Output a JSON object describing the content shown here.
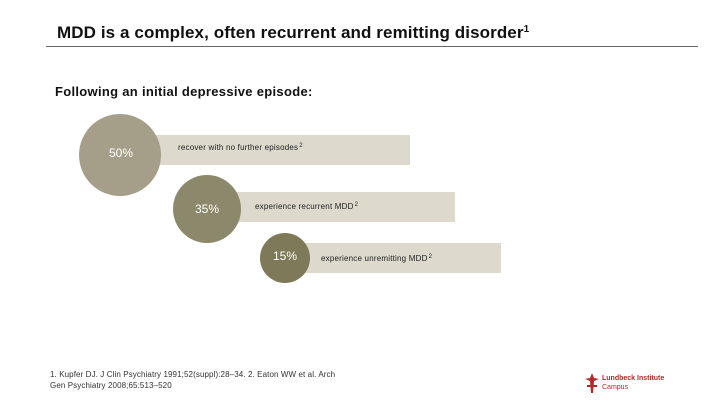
{
  "slide": {
    "title": "MDD is a complex, often recurrent and remitting disorder",
    "title_ref": "1",
    "subtitle": "Following an initial depressive episode:",
    "outcomes": [
      {
        "percent": "50%",
        "label": "recover with no further episodes",
        "ref": "2"
      },
      {
        "percent": "35%",
        "label": "experience recurrent MDD",
        "ref": "2"
      },
      {
        "percent": "15%",
        "label": "experience unremitting MDD",
        "ref": "2"
      }
    ],
    "footnote_line1": "1. Kupfer DJ. J Clin Psychiatry 1991;52(suppl):28–34. 2. Eaton WW et al. Arch",
    "footnote_line2": "Gen Psychiatry 2008;65:513–520",
    "logo": {
      "line1": "Lundbeck Institute",
      "line2": "Campus",
      "icon": "lundbeck-cross-icon",
      "color": "#b22a2a"
    }
  }
}
